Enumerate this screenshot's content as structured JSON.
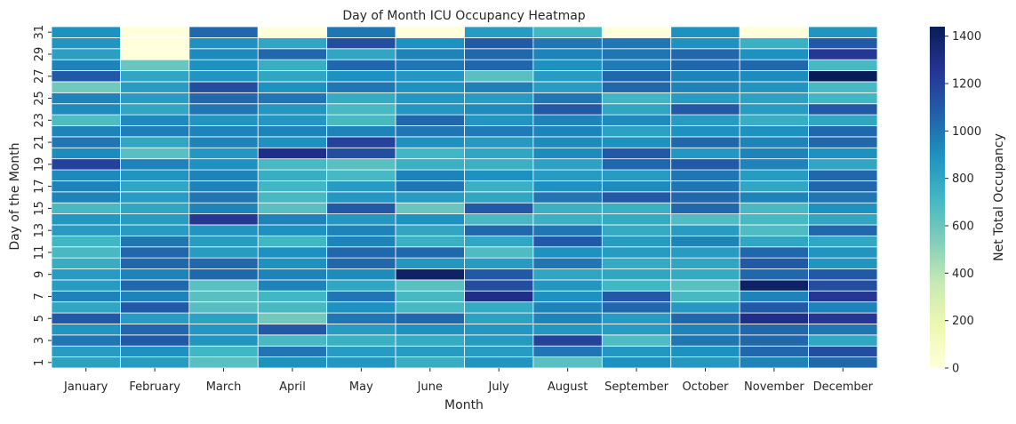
{
  "chart_data": {
    "type": "heatmap",
    "title": "Day of Month ICU Occupancy Heatmap",
    "xlabel": "Month",
    "ylabel": "Day of the Month",
    "colorbar_label": "Net Total Occupancy",
    "colormap": "YlGnBu",
    "vmin": 0,
    "vmax": 1440,
    "colorbar_ticks": [
      0,
      200,
      400,
      600,
      800,
      1000,
      1200,
      1400
    ],
    "x_categories": [
      "January",
      "February",
      "March",
      "April",
      "May",
      "June",
      "July",
      "August",
      "September",
      "October",
      "November",
      "December"
    ],
    "y_categories": [
      1,
      2,
      3,
      4,
      5,
      6,
      7,
      8,
      9,
      10,
      11,
      12,
      13,
      14,
      15,
      16,
      17,
      18,
      19,
      20,
      21,
      22,
      23,
      24,
      25,
      26,
      27,
      28,
      29,
      30,
      31
    ],
    "y_tick_labels_shown": [
      "1",
      "3",
      "5",
      "7",
      "9",
      "11",
      "13",
      "15",
      "17",
      "19",
      "21",
      "23",
      "25",
      "27",
      "29",
      "31"
    ],
    "values_by_month": [
      [
        820,
        850,
        1000,
        880,
        1100,
        800,
        950,
        850,
        850,
        770,
        700,
        720,
        850,
        870,
        700,
        950,
        950,
        930,
        1200,
        920,
        1000,
        950,
        680,
        920,
        950,
        580,
        1100,
        950,
        830,
        880,
        900
      ],
      [
        850,
        900,
        1100,
        1050,
        850,
        1100,
        950,
        1050,
        950,
        1050,
        1050,
        1000,
        850,
        850,
        800,
        850,
        800,
        880,
        950,
        650,
        800,
        970,
        930,
        800,
        850,
        850,
        800,
        600,
        0,
        0,
        0
      ],
      [
        650,
        720,
        880,
        870,
        820,
        660,
        650,
        650,
        1050,
        1050,
        850,
        850,
        880,
        1250,
        950,
        1000,
        950,
        950,
        900,
        870,
        950,
        950,
        880,
        1000,
        1050,
        1150,
        880,
        900,
        930,
        900,
        1050
      ],
      [
        900,
        1000,
        700,
        1100,
        580,
        700,
        720,
        950,
        950,
        900,
        900,
        720,
        900,
        950,
        650,
        700,
        720,
        760,
        700,
        1300,
        900,
        950,
        870,
        870,
        1000,
        900,
        800,
        760,
        1050,
        800,
        0
      ],
      [
        870,
        850,
        750,
        850,
        1000,
        900,
        1000,
        800,
        920,
        1050,
        1050,
        950,
        950,
        870,
        1100,
        870,
        850,
        700,
        650,
        1150,
        1200,
        950,
        700,
        700,
        780,
        1000,
        900,
        1050,
        800,
        1150,
        1000
      ],
      [
        760,
        850,
        780,
        900,
        1050,
        700,
        700,
        650,
        1400,
        870,
        1050,
        750,
        800,
        900,
        600,
        850,
        1000,
        950,
        750,
        720,
        900,
        1000,
        1050,
        870,
        870,
        900,
        870,
        1000,
        950,
        900,
        0
      ],
      [
        880,
        850,
        860,
        870,
        820,
        780,
        1300,
        1150,
        1100,
        850,
        680,
        800,
        1050,
        700,
        1100,
        800,
        750,
        900,
        750,
        800,
        860,
        980,
        880,
        920,
        850,
        960,
        650,
        1050,
        1050,
        1100,
        850
      ],
      [
        650,
        1000,
        1200,
        870,
        950,
        950,
        900,
        870,
        800,
        1000,
        900,
        1100,
        1000,
        750,
        750,
        1000,
        900,
        850,
        820,
        920,
        920,
        950,
        950,
        1100,
        1000,
        850,
        850,
        900,
        950,
        1000,
        720
      ],
      [
        900,
        870,
        680,
        850,
        850,
        1050,
        1100,
        720,
        800,
        780,
        850,
        850,
        780,
        780,
        750,
        1100,
        920,
        850,
        1050,
        1100,
        900,
        820,
        920,
        800,
        720,
        1050,
        1050,
        980,
        1000,
        1000,
        0
      ],
      [
        870,
        900,
        1000,
        950,
        1050,
        860,
        700,
        650,
        780,
        800,
        850,
        950,
        850,
        680,
        1050,
        1050,
        1000,
        1000,
        1100,
        870,
        1050,
        900,
        850,
        1100,
        850,
        950,
        950,
        1050,
        1050,
        900,
        900
      ],
      [
        950,
        1050,
        1050,
        1050,
        1300,
        1100,
        950,
        1400,
        1050,
        1100,
        1050,
        800,
        680,
        700,
        700,
        950,
        800,
        850,
        950,
        950,
        950,
        900,
        760,
        850,
        820,
        880,
        920,
        1050,
        900,
        750,
        0
      ],
      [
        1050,
        1150,
        800,
        1000,
        1250,
        950,
        1250,
        1150,
        1100,
        880,
        880,
        800,
        1050,
        800,
        900,
        1000,
        1050,
        1050,
        800,
        900,
        1050,
        1050,
        800,
        1100,
        720,
        700,
        1450,
        700,
        1250,
        1100,
        880
      ]
    ]
  }
}
